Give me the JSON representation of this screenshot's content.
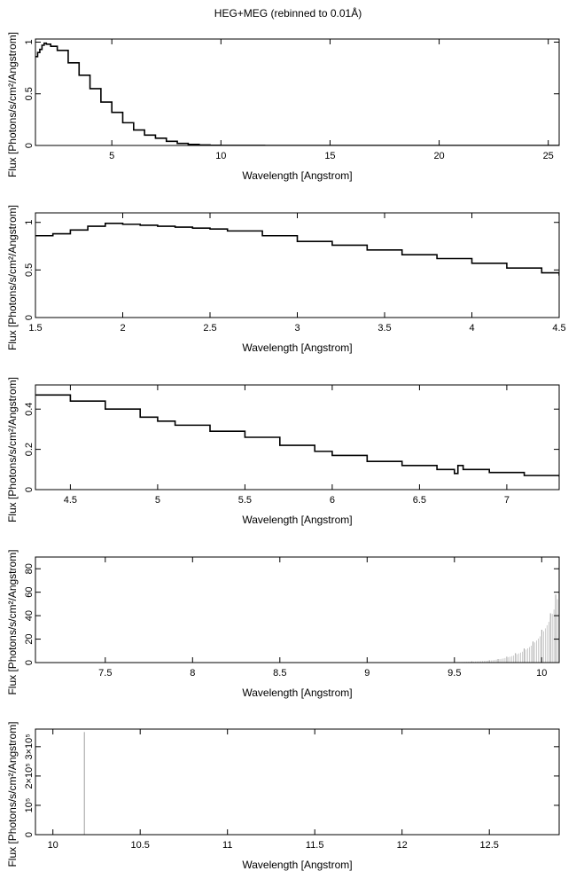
{
  "figure": {
    "title": "HEG+MEG (rebinned to 0.01Å)"
  },
  "chart_data": [
    {
      "type": "line",
      "title": "",
      "xlabel": "Wavelength [Angstrom]",
      "ylabel": "Flux [Photons/s/cm²/Angstrom]",
      "xlim": [
        1.5,
        25.5
      ],
      "ylim": [
        0,
        1.03
      ],
      "xticks": [
        5,
        10,
        15,
        20,
        25
      ],
      "xtick_labels": [
        "5",
        "10",
        "15",
        "20",
        "25"
      ],
      "yticks": [
        0,
        0.5,
        1
      ],
      "ytick_labels": [
        "0",
        "0.5",
        "1"
      ],
      "grid": false,
      "series": [
        {
          "x": [
            1.5,
            1.6,
            1.7,
            1.8,
            1.9,
            2.0,
            2.2,
            2.5,
            3.0,
            3.5,
            4.0,
            4.5,
            5.0,
            5.5,
            6.0,
            6.5,
            7.0,
            7.5,
            8.0,
            8.5,
            9.0,
            9.5,
            10,
            12,
            15,
            20,
            25.5
          ],
          "y": [
            0.86,
            0.9,
            0.93,
            0.97,
            0.99,
            0.98,
            0.96,
            0.92,
            0.8,
            0.68,
            0.55,
            0.42,
            0.32,
            0.22,
            0.15,
            0.1,
            0.07,
            0.04,
            0.02,
            0.01,
            0.005,
            0.002,
            0.001,
            0,
            0,
            0,
            0
          ]
        }
      ]
    },
    {
      "type": "line",
      "title": "",
      "xlabel": "Wavelength [Angstrom]",
      "ylabel": "Flux [Photons/s/cm²/Angstrom]",
      "xlim": [
        1.5,
        4.5
      ],
      "ylim": [
        0,
        1.1
      ],
      "xticks": [
        1.5,
        2,
        2.5,
        3,
        3.5,
        4,
        4.5
      ],
      "xtick_labels": [
        "1.5",
        "2",
        "2.5",
        "3",
        "3.5",
        "4",
        "4.5"
      ],
      "yticks": [
        0,
        0.5,
        1
      ],
      "ytick_labels": [
        "0",
        "0.5",
        "1"
      ],
      "grid": false,
      "series": [
        {
          "x": [
            1.5,
            1.6,
            1.7,
            1.8,
            1.9,
            2.0,
            2.1,
            2.2,
            2.3,
            2.4,
            2.5,
            2.6,
            2.8,
            3.0,
            3.2,
            3.4,
            3.6,
            3.8,
            4.0,
            4.2,
            4.4,
            4.5
          ],
          "y": [
            0.86,
            0.88,
            0.92,
            0.96,
            0.99,
            0.98,
            0.97,
            0.96,
            0.95,
            0.94,
            0.93,
            0.91,
            0.86,
            0.8,
            0.76,
            0.71,
            0.66,
            0.62,
            0.57,
            0.52,
            0.47,
            0.44
          ]
        }
      ]
    },
    {
      "type": "line",
      "title": "",
      "xlabel": "Wavelength [Angstrom]",
      "ylabel": "Flux [Photons/s/cm²/Angstrom]",
      "xlim": [
        4.3,
        7.3
      ],
      "ylim": [
        0,
        0.52
      ],
      "xticks": [
        4.5,
        5,
        5.5,
        6,
        6.5,
        7
      ],
      "xtick_labels": [
        "4.5",
        "5",
        "5.5",
        "6",
        "6.5",
        "7"
      ],
      "yticks": [
        0,
        0.2,
        0.4
      ],
      "ytick_labels": [
        "0",
        "0.2",
        "0.4"
      ],
      "grid": false,
      "series": [
        {
          "x": [
            4.3,
            4.5,
            4.7,
            4.9,
            5.0,
            5.1,
            5.3,
            5.5,
            5.7,
            5.9,
            6.0,
            6.2,
            6.4,
            6.6,
            6.7,
            6.72,
            6.75,
            6.9,
            7.1,
            7.3
          ],
          "y": [
            0.47,
            0.44,
            0.4,
            0.36,
            0.34,
            0.32,
            0.29,
            0.26,
            0.22,
            0.19,
            0.17,
            0.14,
            0.12,
            0.1,
            0.08,
            0.12,
            0.1,
            0.085,
            0.07,
            0.065
          ]
        }
      ]
    },
    {
      "type": "bar",
      "title": "",
      "xlabel": "Wavelength [Angstrom]",
      "ylabel": "Flux [Photons/s/cm²/Angstrom]",
      "xlim": [
        7.1,
        10.1
      ],
      "ylim": [
        0,
        90
      ],
      "xticks": [
        7.5,
        8,
        8.5,
        9,
        9.5,
        10
      ],
      "xtick_labels": [
        "7.5",
        "8",
        "8.5",
        "9",
        "9.5",
        "10"
      ],
      "yticks": [
        0,
        20,
        40,
        60,
        80
      ],
      "ytick_labels": [
        "0",
        "20",
        "40",
        "60",
        "80"
      ],
      "grid": false,
      "series": [
        {
          "x": [
            9.5,
            9.6,
            9.7,
            9.75,
            9.8,
            9.85,
            9.9,
            9.95,
            10.0,
            10.05,
            10.08
          ],
          "y": [
            0.5,
            1,
            2,
            3,
            5,
            8,
            12,
            18,
            28,
            42,
            58
          ]
        }
      ]
    },
    {
      "type": "bar",
      "title": "",
      "xlabel": "Wavelength [Angstrom]",
      "ylabel": "Flux [Photons/s/cm²/Angstrom]",
      "xlim": [
        9.9,
        12.9
      ],
      "ylim": [
        0,
        360000
      ],
      "xticks": [
        10,
        10.5,
        11,
        11.5,
        12,
        12.5
      ],
      "xtick_labels": [
        "10",
        "10.5",
        "11",
        "11.5",
        "12",
        "12.5"
      ],
      "yticks": [
        0,
        100000,
        200000,
        300000
      ],
      "ytick_labels": [
        "0",
        "10⁵",
        "2×10⁵",
        "3×10⁵"
      ],
      "grid": false,
      "series": [
        {
          "x": [
            10.18
          ],
          "y": [
            350000
          ]
        }
      ]
    }
  ]
}
